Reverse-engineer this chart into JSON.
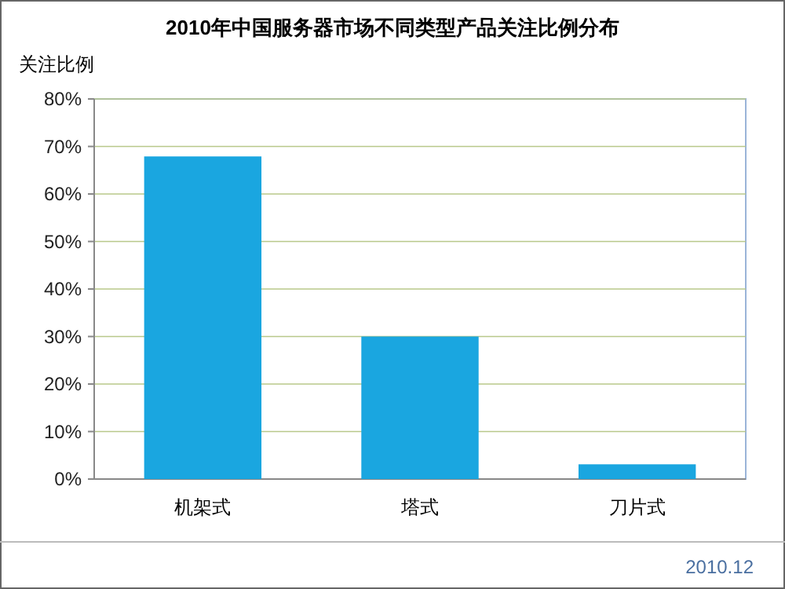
{
  "chart_data": {
    "type": "bar",
    "title": "2010年中国服务器市场不同类型产品关注比例分布",
    "ylabel": "关注比例",
    "categories": [
      "机架式",
      "塔式",
      "刀片式"
    ],
    "values": [
      67.9,
      30,
      3.1
    ],
    "color": "#1aa6e0",
    "ylim": [
      0,
      80
    ],
    "yticks": [
      {
        "value": 0,
        "label": "0%"
      },
      {
        "value": 10,
        "label": "10%"
      },
      {
        "value": 20,
        "label": "20%"
      },
      {
        "value": 30,
        "label": "30%"
      },
      {
        "value": 40,
        "label": "40%"
      },
      {
        "value": 50,
        "label": "50%"
      },
      {
        "value": 60,
        "label": "60%"
      },
      {
        "value": 70,
        "label": "70%"
      },
      {
        "value": 80,
        "label": "80%"
      }
    ],
    "grid": "y",
    "annotations": [
      "2010.12"
    ]
  }
}
